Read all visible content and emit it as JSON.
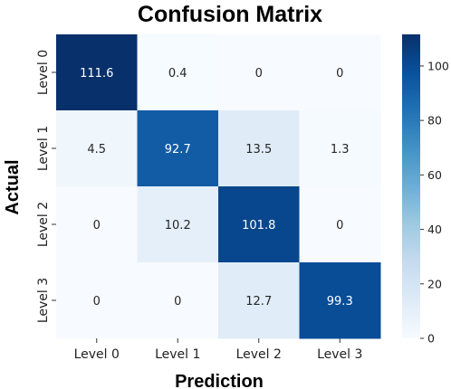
{
  "chart_data": {
    "type": "heatmap",
    "title": "Confusion Matrix",
    "xlabel": "Prediction",
    "ylabel": "Actual",
    "x_categories": [
      "Level 0",
      "Level 1",
      "Level 2",
      "Level 3"
    ],
    "y_categories": [
      "Level 0",
      "Level 1",
      "Level 2",
      "Level 3"
    ],
    "values": [
      [
        111.6,
        0.4,
        0,
        0
      ],
      [
        4.5,
        92.7,
        13.5,
        1.3
      ],
      [
        0,
        10.2,
        101.8,
        0
      ],
      [
        0,
        0,
        12.7,
        99.3
      ]
    ],
    "colormap": "Blues",
    "vmin": 0,
    "vmax": 111.6,
    "colorbar_ticks": [
      0,
      20,
      40,
      60,
      80,
      100
    ]
  }
}
